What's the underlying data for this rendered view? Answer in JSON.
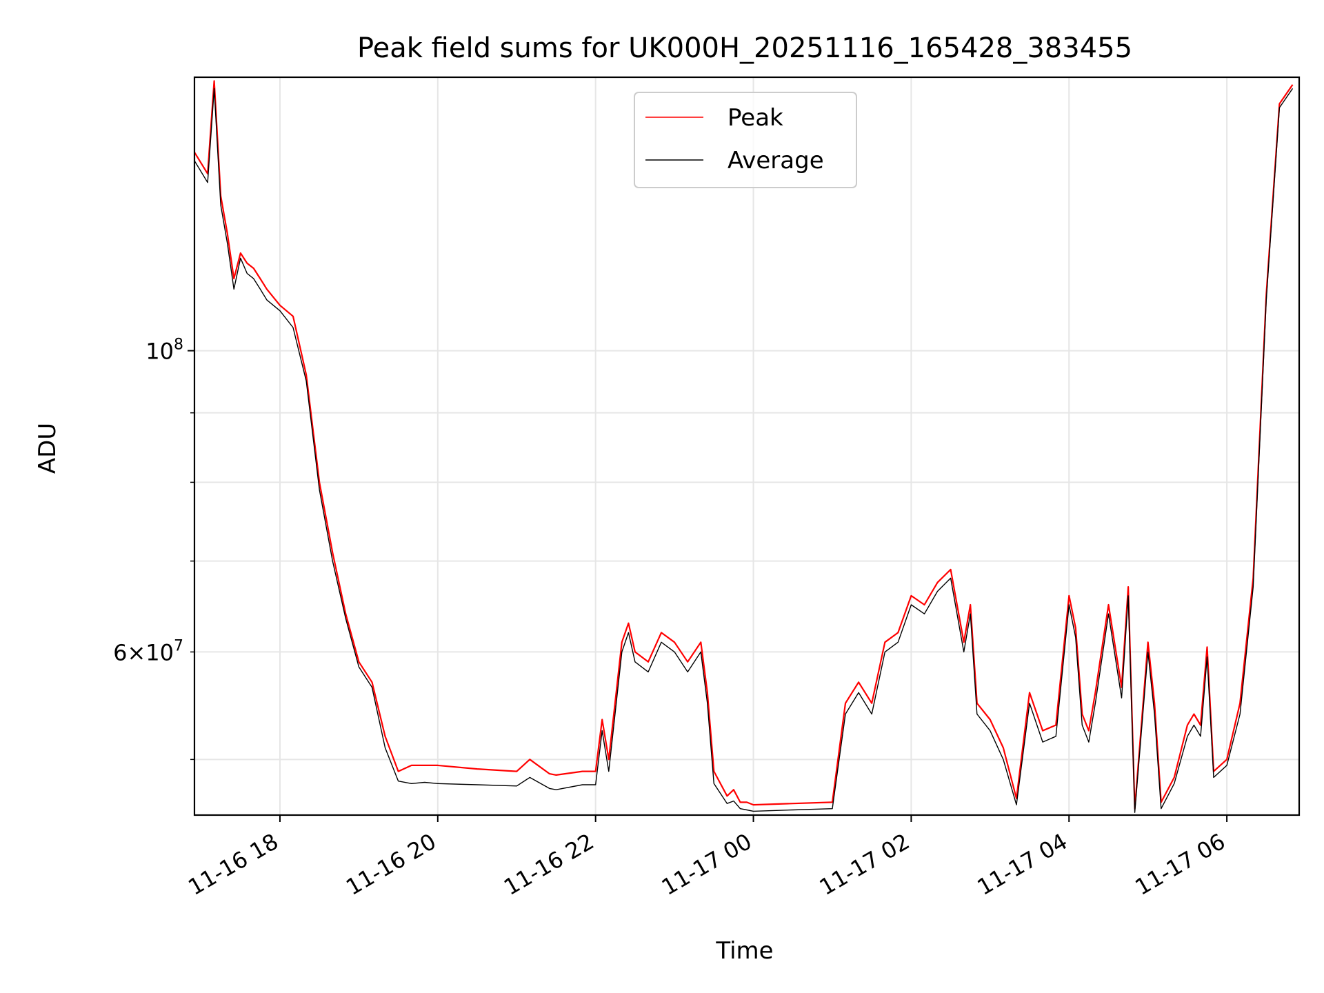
{
  "chart_data": {
    "type": "line",
    "title": "Peak field sums for UK000H_20251116_165428_383455",
    "xlabel": "Time",
    "ylabel": "ADU",
    "y_scale": "log",
    "xlim": [
      "2025-11-16 16:55",
      "2025-11-17 06:55"
    ],
    "ylim": [
      45500000.0,
      159000000.0
    ],
    "grid": true,
    "legend_position": "upper center",
    "x_ticks": [
      {
        "value": "2025-11-16 18:00",
        "label": "11-16 18"
      },
      {
        "value": "2025-11-16 20:00",
        "label": "11-16 20"
      },
      {
        "value": "2025-11-16 22:00",
        "label": "11-16 22"
      },
      {
        "value": "2025-11-17 00:00",
        "label": "11-17 00"
      },
      {
        "value": "2025-11-17 02:00",
        "label": "11-17 02"
      },
      {
        "value": "2025-11-17 04:00",
        "label": "11-17 04"
      },
      {
        "value": "2025-11-17 06:00",
        "label": "11-17 06"
      }
    ],
    "y_major_ticks": [
      {
        "value": 100000000,
        "label_base": "10",
        "label_exp": "8"
      }
    ],
    "y_minor_ticks": [
      {
        "value": 60000000,
        "label_coef": "6×",
        "label_base": "10",
        "label_exp": "7"
      },
      {
        "value": 50000000
      },
      {
        "value": 70000000
      },
      {
        "value": 80000000
      },
      {
        "value": 90000000
      }
    ],
    "x": [
      "2025-11-16 16:55",
      "2025-11-16 17:05",
      "2025-11-16 17:10",
      "2025-11-16 17:15",
      "2025-11-16 17:20",
      "2025-11-16 17:25",
      "2025-11-16 17:30",
      "2025-11-16 17:35",
      "2025-11-16 17:40",
      "2025-11-16 17:45",
      "2025-11-16 17:50",
      "2025-11-16 18:00",
      "2025-11-16 18:10",
      "2025-11-16 18:20",
      "2025-11-16 18:30",
      "2025-11-16 18:40",
      "2025-11-16 18:50",
      "2025-11-16 19:00",
      "2025-11-16 19:10",
      "2025-11-16 19:20",
      "2025-11-16 19:30",
      "2025-11-16 19:40",
      "2025-11-16 19:50",
      "2025-11-16 20:00",
      "2025-11-16 20:30",
      "2025-11-16 21:00",
      "2025-11-16 21:10",
      "2025-11-16 21:25",
      "2025-11-16 21:30",
      "2025-11-16 21:50",
      "2025-11-16 22:00",
      "2025-11-16 22:05",
      "2025-11-16 22:10",
      "2025-11-16 22:20",
      "2025-11-16 22:25",
      "2025-11-16 22:30",
      "2025-11-16 22:40",
      "2025-11-16 22:50",
      "2025-11-16 23:00",
      "2025-11-16 23:10",
      "2025-11-16 23:20",
      "2025-11-16 23:25",
      "2025-11-16 23:30",
      "2025-11-16 23:40",
      "2025-11-16 23:45",
      "2025-11-16 23:50",
      "2025-11-16 23:55",
      "2025-11-17 00:00",
      "2025-11-17 00:30",
      "2025-11-17 01:00",
      "2025-11-17 01:10",
      "2025-11-17 01:20",
      "2025-11-17 01:30",
      "2025-11-17 01:40",
      "2025-11-17 01:50",
      "2025-11-17 02:00",
      "2025-11-17 02:10",
      "2025-11-17 02:20",
      "2025-11-17 02:30",
      "2025-11-17 02:40",
      "2025-11-17 02:45",
      "2025-11-17 02:50",
      "2025-11-17 03:00",
      "2025-11-17 03:10",
      "2025-11-17 03:20",
      "2025-11-17 03:30",
      "2025-11-17 03:40",
      "2025-11-17 03:50",
      "2025-11-17 04:00",
      "2025-11-17 04:05",
      "2025-11-17 04:10",
      "2025-11-17 04:15",
      "2025-11-17 04:20",
      "2025-11-17 04:30",
      "2025-11-17 04:40",
      "2025-11-17 04:45",
      "2025-11-17 04:50",
      "2025-11-17 05:00",
      "2025-11-17 05:05",
      "2025-11-17 05:10",
      "2025-11-17 05:20",
      "2025-11-17 05:30",
      "2025-11-17 05:35",
      "2025-11-17 05:40",
      "2025-11-17 05:45",
      "2025-11-17 05:50",
      "2025-11-17 06:00",
      "2025-11-17 06:10",
      "2025-11-17 06:20",
      "2025-11-17 06:30",
      "2025-11-17 06:40",
      "2025-11-17 06:50"
    ],
    "series": [
      {
        "name": "Peak",
        "color": "#ff0000",
        "values": [
          140000000,
          135000000,
          158000000,
          130000000,
          122000000,
          113000000,
          118000000,
          116000000,
          115000000,
          113000000,
          111000000,
          108000000,
          106000000,
          96000000,
          80000000,
          71000000,
          64000000,
          59000000,
          57000000,
          52000000,
          49000000,
          49500000,
          49500000,
          49500000,
          49200000,
          49000000,
          50000000,
          48800000,
          48700000,
          49000000,
          49000000,
          53500000,
          50000000,
          61000000,
          63000000,
          60000000,
          59000000,
          62000000,
          61000000,
          59000000,
          61000000,
          56000000,
          49000000,
          47000000,
          47500000,
          46500000,
          46500000,
          46300000,
          46400000,
          46500000,
          55000000,
          57000000,
          55000000,
          61000000,
          62000000,
          66000000,
          65000000,
          67500000,
          69000000,
          61000000,
          65000000,
          55000000,
          53500000,
          51000000,
          46800000,
          56000000,
          52500000,
          53000000,
          66000000,
          62500000,
          54000000,
          52500000,
          56000000,
          65000000,
          56500000,
          67000000,
          46000000,
          61000000,
          55000000,
          46500000,
          48500000,
          53000000,
          54000000,
          53000000,
          60500000,
          49000000,
          50000000,
          55000000,
          68000000,
          110000000,
          152000000,
          157000000
        ]
      },
      {
        "name": "Average",
        "color": "#000000",
        "values": [
          138000000,
          133000000,
          156000000,
          128000000,
          120000000,
          111000000,
          117000000,
          114000000,
          113000000,
          111000000,
          109000000,
          107000000,
          104000000,
          95000000,
          79000000,
          70000000,
          63500000,
          58500000,
          56500000,
          51000000,
          48200000,
          48000000,
          48100000,
          48000000,
          47900000,
          47800000,
          48500000,
          47600000,
          47500000,
          47900000,
          47900000,
          52500000,
          49000000,
          60000000,
          62000000,
          59000000,
          58000000,
          61000000,
          60000000,
          58000000,
          60000000,
          55000000,
          48000000,
          46400000,
          46600000,
          46000000,
          45900000,
          45800000,
          45900000,
          46000000,
          54000000,
          56000000,
          54000000,
          60000000,
          61000000,
          65000000,
          64000000,
          66500000,
          68000000,
          60000000,
          64000000,
          54000000,
          52500000,
          50000000,
          46300000,
          55000000,
          51500000,
          52000000,
          65000000,
          61500000,
          53000000,
          51500000,
          55000000,
          64000000,
          55500000,
          66000000,
          45700000,
          60000000,
          54000000,
          46000000,
          48000000,
          52000000,
          53000000,
          52000000,
          59500000,
          48500000,
          49500000,
          54000000,
          67000000,
          109000000,
          151000000,
          156000000
        ]
      }
    ]
  }
}
